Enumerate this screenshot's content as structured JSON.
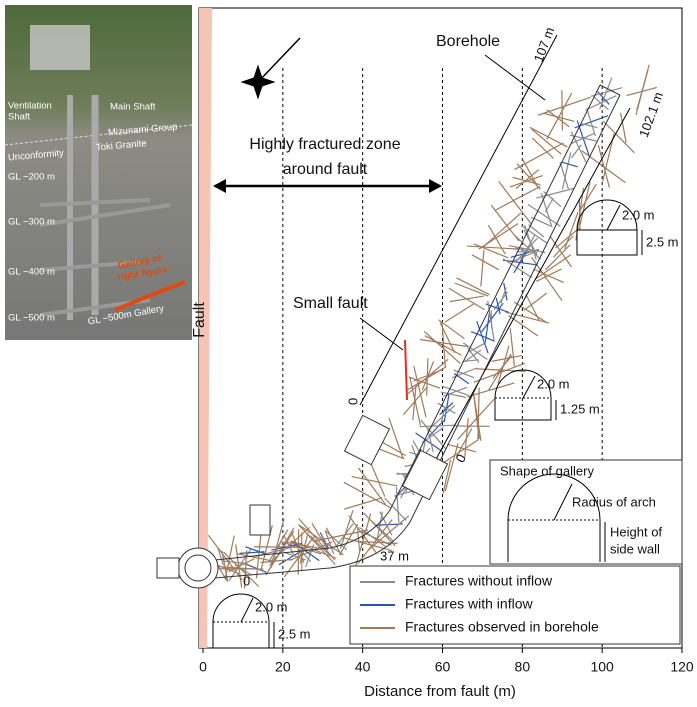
{
  "inset": {
    "ventilation": [
      "Ventilation",
      "Shaft"
    ],
    "main_shaft": "Main Shaft",
    "mizunami": "Mizunami Group",
    "unconformity": "Unconformity",
    "toki": "Toki Granite",
    "levels": [
      "GL −200 m",
      "GL −300 m",
      "GL −400 m",
      "GL −500 m"
    ],
    "gallery_of_figure": [
      "Gallery of",
      "right figure"
    ],
    "gallery_500": "GL −500m Gallery"
  },
  "figure": {
    "xlabel": "Distance from fault (m)",
    "xticks": [
      0,
      20,
      40,
      60,
      80,
      100,
      120
    ],
    "xlim": [
      0,
      120
    ],
    "fault": "Fault",
    "borehole": "Borehole",
    "borehole_lengths": [
      "107 m",
      "102.1 m"
    ],
    "zone": [
      "Highly fractured zone",
      "around fault"
    ],
    "small_fault": "Small fault",
    "zero": "0",
    "length_37": "37 m",
    "sections": [
      {
        "radius": "2.0 m",
        "height": "2.5 m"
      },
      {
        "radius": "2.0 m",
        "height": "1.25 m"
      },
      {
        "radius": "2.0 m",
        "height": "2.5 m"
      }
    ],
    "shape_box": {
      "title": "Shape of gallery",
      "radius": "Radius of arch",
      "height": [
        "Height of",
        "side wall"
      ]
    },
    "legend": [
      {
        "name": "Fractures without inflow",
        "color": "#8a8a8a"
      },
      {
        "name": "Fractures with inflow",
        "color": "#2a55b5"
      },
      {
        "name": "Fractures observed in borehole",
        "color": "#a07a5a"
      }
    ]
  }
}
